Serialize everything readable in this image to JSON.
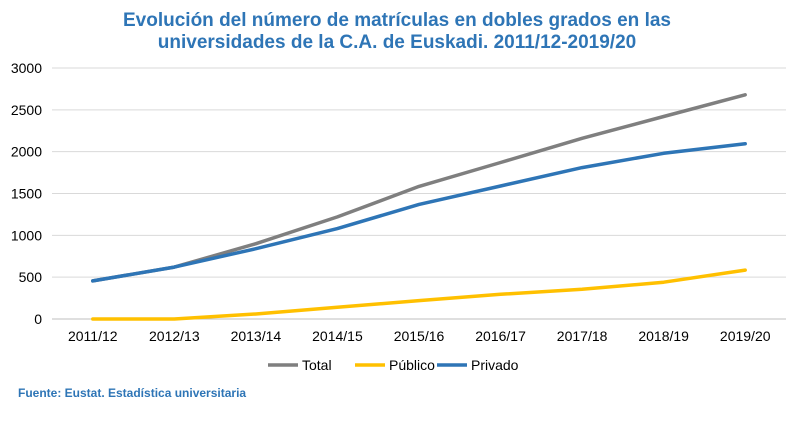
{
  "chart_data": {
    "type": "line",
    "title_lines": [
      "Evolución del número de matrículas en dobles grados en las",
      "universidades de la C.A. de Euskadi. 2011/12-2019/20"
    ],
    "categories": [
      "2011/12",
      "2012/13",
      "2013/14",
      "2014/15",
      "2015/16",
      "2016/17",
      "2017/18",
      "2018/19",
      "2019/20"
    ],
    "series": [
      {
        "name": "Total",
        "color": "#7f7f7f",
        "values": [
          455,
          620,
          900,
          1220,
          1585,
          1870,
          2160,
          2420,
          2680
        ]
      },
      {
        "name": "Público",
        "color": "#ffc000",
        "values": [
          0,
          0,
          60,
          140,
          220,
          295,
          355,
          440,
          585
        ]
      },
      {
        "name": "Privado",
        "color": "#2e75b6",
        "values": [
          455,
          620,
          840,
          1080,
          1370,
          1590,
          1810,
          1980,
          2095
        ]
      }
    ],
    "y_ticks": [
      0,
      500,
      1000,
      1500,
      2000,
      2500,
      3000
    ],
    "ylim": [
      0,
      3000
    ],
    "grid": true,
    "legend_position": "bottom",
    "title_color": "#2e75b6"
  },
  "source": {
    "text": "Fuente: Eustat. Estadística universitaria",
    "color": "#2e75b6"
  }
}
